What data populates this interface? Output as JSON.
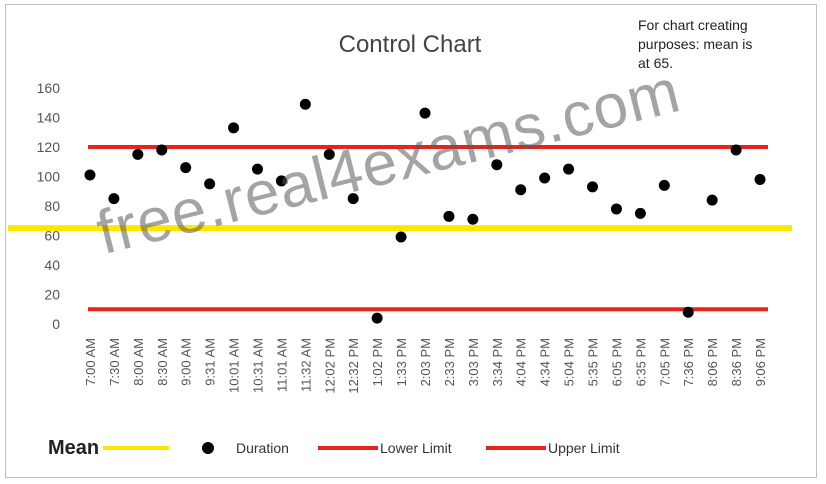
{
  "note": {
    "line1": "For chart creating",
    "line2": "purposes: mean is",
    "line3": "at 65."
  },
  "watermark": "free.real4exams.com",
  "legend": {
    "mean": "Mean",
    "duration": "Duration",
    "lower": "Lower Limit",
    "upper": "Upper Limit"
  },
  "colors": {
    "mean": "#ffe600",
    "limit": "#e8231c",
    "point": "#000000",
    "grid": "#d9d9d9"
  },
  "chart_data": {
    "type": "scatter",
    "title": "Control Chart",
    "xlabel": "",
    "ylabel": "",
    "ylim": [
      0,
      160
    ],
    "yticks": [
      0,
      20,
      40,
      60,
      80,
      100,
      120,
      140,
      160
    ],
    "grid": false,
    "legend_position": "bottom",
    "categories": [
      "7:00 AM",
      "7:30 AM",
      "8:00 AM",
      "8:30 AM",
      "9:00 AM",
      "9:31 AM",
      "10:01 AM",
      "10:31 AM",
      "11:01 AM",
      "11:32 AM",
      "12:02 PM",
      "12:32 PM",
      "1:02 PM",
      "1:33 PM",
      "2:03 PM",
      "2:33 PM",
      "3:03 PM",
      "3:34 PM",
      "4:04 PM",
      "4:34 PM",
      "5:04 PM",
      "5:35 PM",
      "6:05 PM",
      "6:35 PM",
      "7:05 PM",
      "7:36 PM",
      "8:06 PM",
      "8:36 PM",
      "9:06 PM"
    ],
    "series": [
      {
        "name": "Duration",
        "values": [
          101,
          85,
          115,
          118,
          106,
          95,
          133,
          105,
          97,
          149,
          115,
          85,
          4,
          59,
          143,
          73,
          71,
          108,
          91,
          99,
          105,
          93,
          78,
          75,
          94,
          8,
          84,
          118,
          98
        ]
      }
    ],
    "lines": {
      "mean": 65,
      "lower": 10,
      "upper": 120
    }
  }
}
